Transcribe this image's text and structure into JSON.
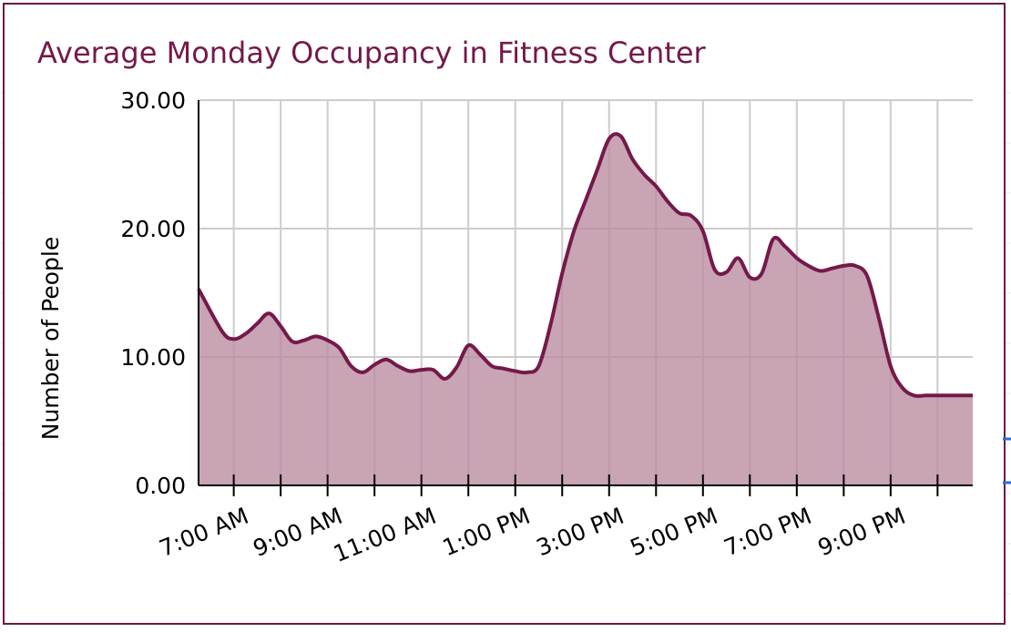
{
  "colors": {
    "accent": "#74194a",
    "area_fill": "#b88ba0",
    "grid": "#cccccc",
    "frame": "#6b1a45"
  },
  "chart_data": {
    "type": "area",
    "title": "Average Monday Occupancy in Fitness Center",
    "xlabel": "",
    "ylabel": "Number of People",
    "ylim": [
      0,
      30
    ],
    "yticks": [
      "0.00",
      "10.00",
      "20.00",
      "30.00"
    ],
    "y_tick_values": [
      0,
      10,
      20,
      30
    ],
    "xlim": [
      6.25,
      22.75
    ],
    "x_tick_labels": [
      "7:00 AM",
      "9:00 AM",
      "11:00 AM",
      "1:00 PM",
      "3:00 PM",
      "5:00 PM",
      "7:00 PM",
      "9:00 PM"
    ],
    "x_tick_label_hours": [
      7,
      9,
      11,
      13,
      15,
      17,
      19,
      21
    ],
    "x_tick_hours": [
      7,
      8,
      9,
      10,
      11,
      12,
      13,
      14,
      15,
      16,
      17,
      18,
      19,
      20,
      21,
      22
    ],
    "grid": true,
    "legend": "none",
    "x": [
      6.25,
      6.75,
      7.0,
      7.25,
      7.5,
      7.75,
      8.0,
      8.25,
      8.5,
      8.75,
      9.0,
      9.25,
      9.5,
      9.75,
      10.0,
      10.25,
      10.5,
      10.75,
      11.0,
      11.25,
      11.5,
      11.75,
      12.0,
      12.25,
      12.5,
      12.75,
      13.0,
      13.25,
      13.5,
      13.75,
      14.0,
      14.25,
      14.5,
      14.75,
      15.0,
      15.25,
      15.5,
      15.75,
      16.0,
      16.25,
      16.5,
      16.75,
      17.0,
      17.25,
      17.5,
      17.75,
      18.0,
      18.25,
      18.5,
      18.75,
      19.0,
      19.25,
      19.5,
      19.75,
      20.0,
      20.25,
      20.5,
      20.75,
      21.0,
      21.25,
      21.5,
      21.75,
      22.0,
      22.25,
      22.5,
      22.75
    ],
    "series": [
      {
        "values": [
          15.3,
          12.0,
          11.4,
          11.8,
          12.6,
          13.4,
          12.4,
          11.2,
          11.3,
          11.6,
          11.3,
          10.7,
          9.3,
          8.8,
          9.4,
          9.8,
          9.3,
          8.9,
          9.0,
          9.0,
          8.3,
          9.2,
          10.9,
          10.2,
          9.3,
          9.1,
          8.9,
          8.8,
          9.3,
          12.5,
          16.5,
          19.8,
          22.2,
          24.6,
          27.0,
          27.2,
          25.4,
          24.2,
          23.3,
          22.1,
          21.2,
          21.0,
          19.8,
          16.8,
          16.6,
          17.7,
          16.2,
          16.5,
          19.2,
          18.6,
          17.7,
          17.1,
          16.7,
          16.9,
          17.1,
          17.1,
          16.3,
          13.0,
          9.3,
          7.6,
          7.0,
          7.0,
          7.0,
          7.0,
          7.0,
          7.0
        ]
      }
    ]
  }
}
